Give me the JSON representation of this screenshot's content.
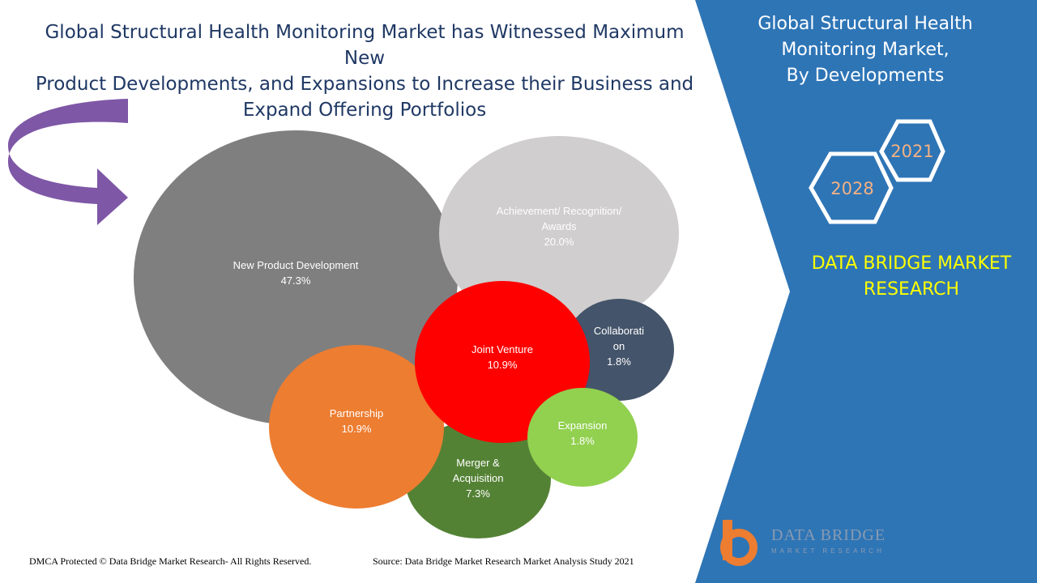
{
  "header": {
    "title_lines": [
      "Global Structural Health Monitoring Market has Witnessed Maximum New",
      "Product Developments, and Expansions to Increase their Business and",
      "Expand Offering Portfolios"
    ]
  },
  "sidebar": {
    "title_lines": [
      "Global Structural Health",
      "Monitoring Market,",
      "By Developments"
    ],
    "years": [
      "2021",
      "2028"
    ],
    "brand_lines": [
      "DATA BRIDGE MARKET",
      "RESEARCH"
    ],
    "logo_text": "DATA BRIDGE",
    "logo_subtext": "MARKET RESEARCH"
  },
  "colors": {
    "panel_blue": "#2e75b6",
    "title_navy": "#1f3864",
    "brand_yellow": "#ffff00",
    "arrow_purple": "#7e57a6"
  },
  "chart_data": {
    "type": "bubble",
    "series": [
      {
        "label_lines": [
          "New Product  Development",
          "47.3%"
        ],
        "value": 47.3,
        "color": "#7f7f7f",
        "text_color": "#ffffff"
      },
      {
        "label_lines": [
          "Achievement/ Recognition/",
          "Awards",
          "20.0%"
        ],
        "value": 20.0,
        "color": "#d0cece",
        "text_color": "#ffffff"
      },
      {
        "label_lines": [
          "Collaborati",
          "on",
          "1.8%"
        ],
        "value": 1.8,
        "color": "#44546a",
        "text_color": "#ffffff"
      },
      {
        "label_lines": [
          "Merger &",
          "Acquisition",
          "7.3%"
        ],
        "value": 7.3,
        "color": "#548235",
        "text_color": "#ffffff"
      },
      {
        "label_lines": [
          "Partnership",
          "10.9%"
        ],
        "value": 10.9,
        "color": "#ed7d31",
        "text_color": "#ffffff"
      },
      {
        "label_lines": [
          "Joint Venture",
          "10.9%"
        ],
        "value": 10.9,
        "color": "#ff0000",
        "text_color": "#ffffff"
      },
      {
        "label_lines": [
          "Expansion",
          "1.8%"
        ],
        "value": 1.8,
        "color": "#92d050",
        "text_color": "#ffffff"
      }
    ]
  },
  "footer": {
    "left": "DMCA Protected © Data Bridge Market Research- All Rights Reserved.",
    "right": "Source: Data Bridge Market Research Market Analysis Study 2021"
  }
}
